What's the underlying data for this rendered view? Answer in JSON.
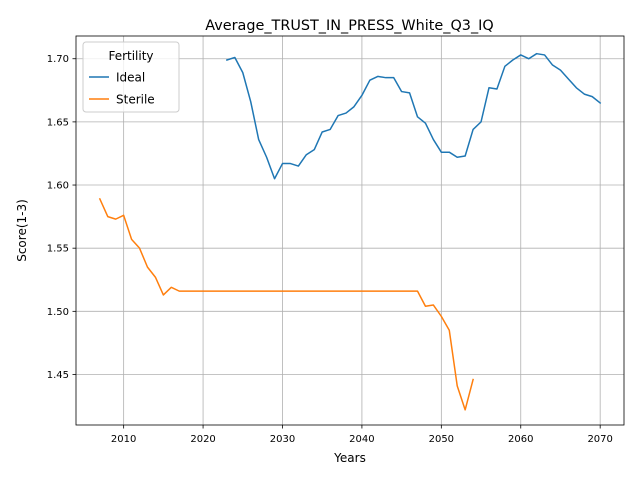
{
  "chart_data": {
    "type": "line",
    "title": "Average_TRUST_IN_PRESS_White_Q3_IQ",
    "xlabel": "Years",
    "ylabel": "Score(1-3)",
    "xlim": [
      2004,
      2073
    ],
    "ylim": [
      1.41,
      1.718
    ],
    "x_ticks": [
      2010,
      2020,
      2030,
      2040,
      2050,
      2060,
      2070
    ],
    "y_ticks": [
      1.45,
      1.5,
      1.55,
      1.6,
      1.65,
      1.7
    ],
    "y_tick_labels": [
      "1.45",
      "1.50",
      "1.55",
      "1.60",
      "1.65",
      "1.70"
    ],
    "grid": true,
    "legend": {
      "title": "Fertility",
      "position": "top-left"
    },
    "series": [
      {
        "name": "Ideal",
        "color": "#1f77b4",
        "x": [
          2023,
          2024,
          2025,
          2026,
          2027,
          2028,
          2029,
          2030,
          2031,
          2032,
          2033,
          2034,
          2035,
          2036,
          2037,
          2038,
          2039,
          2040,
          2041,
          2042,
          2043,
          2044,
          2045,
          2046,
          2047,
          2048,
          2049,
          2050,
          2051,
          2052,
          2053,
          2054,
          2055,
          2056,
          2057,
          2058,
          2059,
          2060,
          2061,
          2062,
          2063,
          2064,
          2065,
          2066,
          2067,
          2068,
          2069,
          2070
        ],
        "y": [
          1.699,
          1.701,
          1.689,
          1.666,
          1.636,
          1.622,
          1.605,
          1.617,
          1.617,
          1.615,
          1.624,
          1.628,
          1.642,
          1.644,
          1.655,
          1.657,
          1.662,
          1.671,
          1.683,
          1.686,
          1.685,
          1.685,
          1.674,
          1.673,
          1.654,
          1.649,
          1.636,
          1.626,
          1.626,
          1.622,
          1.623,
          1.644,
          1.65,
          1.677,
          1.676,
          1.694,
          1.699,
          1.703,
          1.7,
          1.704,
          1.703,
          1.695,
          1.691,
          1.684,
          1.677,
          1.672,
          1.67,
          1.665
        ]
      },
      {
        "name": "Sterile",
        "color": "#ff7f0e",
        "x": [
          2007,
          2008,
          2009,
          2010,
          2011,
          2012,
          2013,
          2014,
          2015,
          2016,
          2017,
          2018,
          2019,
          2020,
          2021,
          2022,
          2023,
          2024,
          2025,
          2026,
          2027,
          2028,
          2029,
          2030,
          2031,
          2032,
          2033,
          2034,
          2035,
          2036,
          2037,
          2038,
          2039,
          2040,
          2041,
          2042,
          2043,
          2044,
          2045,
          2046,
          2047,
          2048,
          2049,
          2050,
          2051,
          2052,
          2053,
          2054
        ],
        "y": [
          1.589,
          1.575,
          1.573,
          1.576,
          1.557,
          1.55,
          1.535,
          1.527,
          1.513,
          1.519,
          1.516,
          1.516,
          1.516,
          1.516,
          1.516,
          1.516,
          1.516,
          1.516,
          1.516,
          1.516,
          1.516,
          1.516,
          1.516,
          1.516,
          1.516,
          1.516,
          1.516,
          1.516,
          1.516,
          1.516,
          1.516,
          1.516,
          1.516,
          1.516,
          1.516,
          1.516,
          1.516,
          1.516,
          1.516,
          1.516,
          1.516,
          1.504,
          1.505,
          1.496,
          1.485,
          1.441,
          1.422,
          1.446
        ]
      }
    ]
  }
}
